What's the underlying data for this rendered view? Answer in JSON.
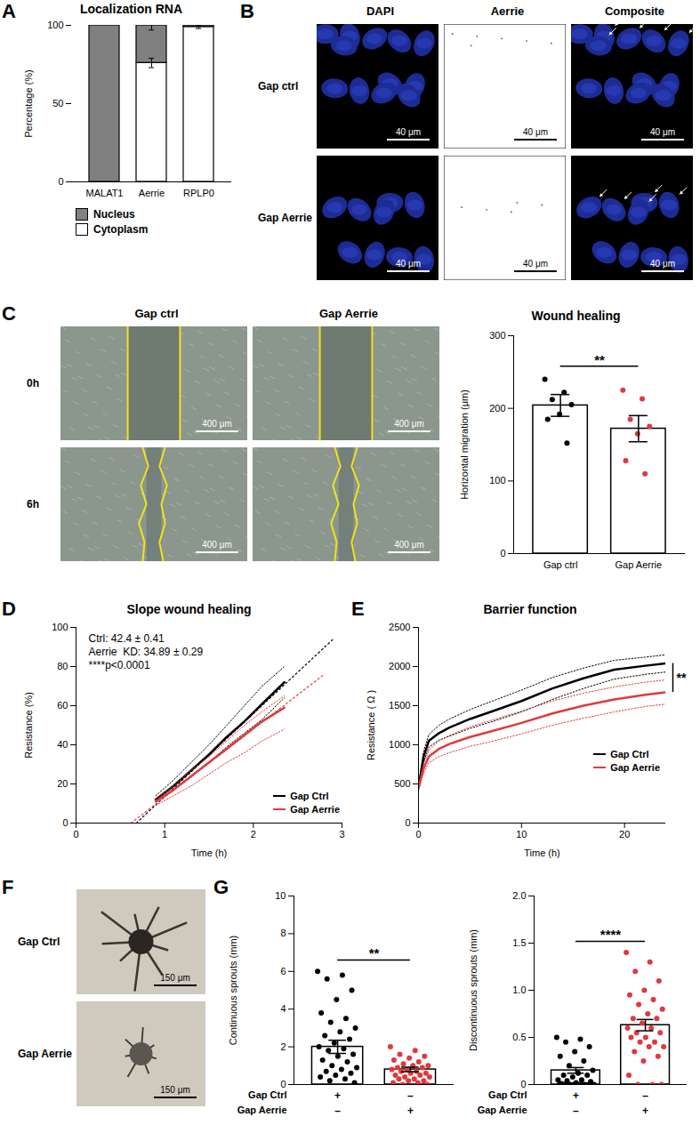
{
  "chart_data": [
    {
      "panel": "A",
      "type": "bar",
      "stacked": true,
      "title": "Localization RNA",
      "y_label": "Percentage (%)",
      "categories": [
        "MALAT1",
        "Aerrie",
        "RPLP0"
      ],
      "series": [
        {
          "name": "Cytoplasm",
          "color": "#ffffff",
          "values": [
            0,
            76,
            99
          ],
          "errors": [
            0,
            3,
            1
          ]
        },
        {
          "name": "Nucleus",
          "color": "#808080",
          "values": [
            100,
            24,
            1
          ],
          "errors": [
            0,
            3,
            0
          ]
        }
      ],
      "ylim": [
        0,
        100
      ],
      "yticks": [
        0,
        50,
        100
      ],
      "legend": "bottom"
    },
    {
      "type": "bar",
      "title": "Wound healing",
      "y_label": "Horizontal migration (μm)",
      "categories": [
        "Gap ctrl",
        "Gap Aerrie"
      ],
      "values": [
        204,
        172
      ],
      "errors": [
        15,
        18
      ],
      "points": [
        [
          240,
          222,
          212,
          205,
          192,
          185,
          152
        ],
        [
          225,
          213,
          185,
          175,
          165,
          128,
          110
        ]
      ],
      "colors": [
        "#000000",
        "#e0393c"
      ],
      "ylim": [
        0,
        300
      ],
      "yticks": [
        0,
        100,
        200,
        300
      ],
      "significance": "**"
    },
    {
      "panel": "D",
      "type": "line",
      "title": "Slope wound healing",
      "x_label": "Time (h)",
      "y_label": "Resistance (%)",
      "xlim": [
        0,
        3
      ],
      "xticks": [
        0,
        1,
        2,
        3
      ],
      "ylim": [
        0,
        100
      ],
      "yticks": [
        0,
        20,
        40,
        60,
        80,
        100
      ],
      "annotations": [
        "Ctrl: 42.4 ± 0.41",
        "Aerrie  KD: 34.89 ± 0.29",
        "****p<0.0001"
      ],
      "legend": "bottom-right",
      "series": [
        {
          "name": "Gap Ctrl",
          "color": "#000000",
          "x": [
            0.9,
            1.1,
            1.3,
            1.5,
            1.7,
            1.9,
            2.1,
            2.35
          ],
          "values": [
            12,
            19,
            27,
            35,
            44,
            52,
            61,
            72
          ],
          "lower": [
            11,
            17,
            24,
            31,
            39,
            46,
            53,
            64
          ],
          "upper": [
            14,
            22,
            31,
            40,
            50,
            60,
            70,
            80
          ]
        },
        {
          "name": "Gap Aerrie",
          "color": "#e0393c",
          "x": [
            0.9,
            1.1,
            1.3,
            1.5,
            1.7,
            1.9,
            2.1,
            2.35
          ],
          "values": [
            11,
            17,
            24,
            31,
            38,
            45,
            52,
            59
          ],
          "lower": [
            9,
            14,
            19,
            25,
            31,
            36,
            42,
            48
          ],
          "upper": [
            12,
            19,
            27,
            34,
            42,
            50,
            57,
            65
          ]
        }
      ],
      "fits": [
        {
          "color": "#000000",
          "line_style": "dotted",
          "x": [
            0.68,
            2.9
          ],
          "values": [
            0,
            94
          ]
        },
        {
          "color": "#e0393c",
          "line_style": "dotted",
          "x": [
            0.62,
            2.8
          ],
          "values": [
            0,
            76
          ]
        }
      ]
    },
    {
      "panel": "E",
      "type": "line",
      "title": "Barrier function",
      "x_label": "Time (h)",
      "y_label": "Resistance ( Ω )",
      "xlim": [
        0,
        24
      ],
      "xticks": [
        0,
        10,
        20
      ],
      "ylim": [
        0,
        2500
      ],
      "yticks": [
        0,
        500,
        1000,
        1500,
        2000,
        2500
      ],
      "legend": "right",
      "significance": "**",
      "series": [
        {
          "name": "Gap Ctrl",
          "color": "#000000",
          "x": [
            0,
            0.5,
            1,
            2,
            3,
            5,
            7,
            10,
            13,
            16,
            19,
            22,
            24
          ],
          "values": [
            450,
            850,
            1050,
            1150,
            1220,
            1330,
            1420,
            1560,
            1720,
            1850,
            1960,
            2010,
            2040
          ],
          "lower": [
            420,
            780,
            970,
            1060,
            1110,
            1210,
            1290,
            1420,
            1580,
            1720,
            1840,
            1900,
            1930
          ],
          "upper": [
            480,
            920,
            1130,
            1250,
            1330,
            1450,
            1550,
            1700,
            1860,
            1980,
            2080,
            2120,
            2150
          ]
        },
        {
          "name": "Gap Aerrie",
          "color": "#e0393c",
          "x": [
            0,
            0.5,
            1,
            2,
            3,
            5,
            7,
            10,
            13,
            16,
            19,
            22,
            24
          ],
          "values": [
            450,
            700,
            850,
            950,
            1010,
            1100,
            1170,
            1280,
            1400,
            1500,
            1580,
            1640,
            1670
          ],
          "lower": [
            420,
            640,
            770,
            850,
            900,
            980,
            1040,
            1140,
            1250,
            1340,
            1420,
            1490,
            1520
          ],
          "upper": [
            480,
            760,
            930,
            1050,
            1120,
            1230,
            1310,
            1430,
            1560,
            1660,
            1740,
            1800,
            1830
          ]
        }
      ]
    },
    {
      "panel": "G",
      "type": "bar",
      "y_label": "Continuous sprouts (mm)",
      "conditions": [
        {
          "name": "Gap Ctrl",
          "signs": [
            "+",
            "–"
          ]
        },
        {
          "name": "Gap Aerrie",
          "signs": [
            "–",
            "+"
          ]
        }
      ],
      "values": [
        2.0,
        0.8
      ],
      "errors": [
        0.35,
        0.12
      ],
      "points": [
        [
          6.0,
          5.8,
          5.6,
          5.0,
          4.5,
          3.8,
          3.5,
          3.3,
          3.0,
          2.8,
          2.6,
          2.4,
          2.2,
          2.0,
          1.9,
          1.8,
          1.6,
          1.5,
          1.3,
          1.2,
          1.0,
          0.9,
          0.8,
          0.7,
          0.6,
          0.5,
          0.4,
          0.3,
          0.2,
          0.1
        ],
        [
          2.0,
          1.8,
          1.6,
          1.5,
          1.4,
          1.3,
          1.2,
          1.1,
          1.0,
          1.0,
          0.9,
          0.9,
          0.8,
          0.8,
          0.7,
          0.7,
          0.6,
          0.6,
          0.5,
          0.5,
          0.4,
          0.4,
          0.3,
          0.3,
          0.2,
          0.2,
          0.1,
          0.1,
          0.0,
          0.0
        ]
      ],
      "colors": [
        "#000000",
        "#e0393c"
      ],
      "ylim": [
        0,
        10
      ],
      "yticks": [
        0,
        2,
        4,
        6,
        8,
        10
      ],
      "significance": "**"
    },
    {
      "type": "bar",
      "y_label": "Discontinuous sprouts (mm)",
      "conditions": [
        {
          "name": "Gap Ctrl",
          "signs": [
            "+",
            "–"
          ]
        },
        {
          "name": "Gap Aerrie",
          "signs": [
            "–",
            "+"
          ]
        }
      ],
      "values": [
        0.15,
        0.63
      ],
      "errors": [
        0.03,
        0.06
      ],
      "points": [
        [
          0.5,
          0.48,
          0.45,
          0.4,
          0.35,
          0.3,
          0.25,
          0.2,
          0.15,
          0.12,
          0.1,
          0.1,
          0.08,
          0.05,
          0.05,
          0.04,
          0.03,
          0.02,
          0.01,
          0.0,
          0.0,
          0.0,
          0.0,
          0.0,
          0.0,
          0.0,
          0.0,
          0.0,
          0.0,
          0.0
        ],
        [
          1.4,
          1.3,
          1.2,
          1.1,
          1.0,
          0.95,
          0.9,
          0.85,
          0.8,
          0.75,
          0.7,
          0.7,
          0.65,
          0.6,
          0.6,
          0.55,
          0.55,
          0.5,
          0.5,
          0.45,
          0.45,
          0.4,
          0.4,
          0.35,
          0.3,
          0.25,
          0.1,
          0.0,
          0.0,
          0.0
        ]
      ],
      "colors": [
        "#000000",
        "#e0393c"
      ],
      "ylim": [
        0,
        2
      ],
      "yticks": [
        0,
        0.5,
        {
          "value": 1,
          "label": "1.0"
        },
        1.5,
        {
          "value": 2,
          "label": "2.0"
        }
      ],
      "significance": "****"
    }
  ],
  "image_panels": [
    {
      "panel": "B",
      "type": "image",
      "columns": [
        "DAPI",
        "Aerrie",
        "Composite"
      ],
      "rows": [
        "Gap ctrl",
        "Gap Aerrie"
      ],
      "scale_bar": "40 μm"
    },
    {
      "panel": "C",
      "type": "image",
      "columns": [
        "Gap ctrl",
        "Gap Aerrie"
      ],
      "rows": [
        "0h",
        "6h"
      ],
      "scale_bar": "400 μm"
    },
    {
      "panel": "F",
      "type": "image",
      "rows": [
        "Gap Ctrl",
        "Gap Aerrie"
      ],
      "scale_bar": "150 μm"
    }
  ]
}
